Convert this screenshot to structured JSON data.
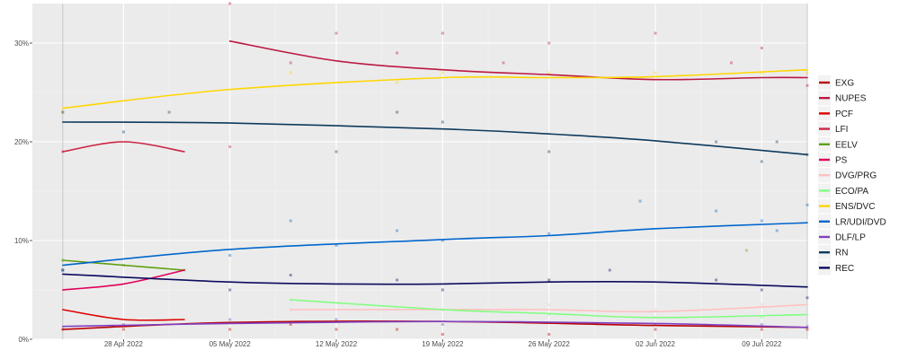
{
  "chart_data": {
    "type": "line",
    "title": "",
    "xlabel": "",
    "ylabel": "",
    "x_range": [
      "2022-04-22",
      "2022-06-12"
    ],
    "ylim": [
      0,
      34
    ],
    "x_ticks": [
      {
        "date": "2022-04-28",
        "label": "28 Apr 2022"
      },
      {
        "date": "2022-05-05",
        "label": "05 May 2022"
      },
      {
        "date": "2022-05-12",
        "label": "12 May 2022"
      },
      {
        "date": "2022-05-19",
        "label": "19 May 2022"
      },
      {
        "date": "2022-05-26",
        "label": "26 May 2022"
      },
      {
        "date": "2022-06-02",
        "label": "02 Jun 2022"
      },
      {
        "date": "2022-06-09",
        "label": "09 Jun 2022"
      }
    ],
    "y_ticks": [
      {
        "value": 0,
        "label": "0%"
      },
      {
        "value": 10,
        "label": "10%"
      },
      {
        "value": 20,
        "label": "20%"
      },
      {
        "value": 30,
        "label": "30%"
      }
    ],
    "reference_dates": [
      "2022-04-24",
      "2022-06-12"
    ],
    "grid": true,
    "legend_position": "right",
    "series": [
      {
        "name": "EXG",
        "color": "#bb0000",
        "points": [
          [
            "2022-04-24",
            1.0
          ],
          [
            "2022-05-05",
            1.7
          ],
          [
            "2022-05-19",
            1.8
          ],
          [
            "2022-06-02",
            1.4
          ],
          [
            "2022-06-12",
            1.2
          ]
        ]
      },
      {
        "name": "NUPES",
        "color": "#bb1840",
        "points": [
          [
            "2022-05-05",
            30.2
          ],
          [
            "2022-05-12",
            28.2
          ],
          [
            "2022-05-19",
            27.3
          ],
          [
            "2022-05-26",
            26.8
          ],
          [
            "2022-06-02",
            26.3
          ],
          [
            "2022-06-09",
            26.5
          ],
          [
            "2022-06-12",
            26.5
          ]
        ]
      },
      {
        "name": "PCF",
        "color": "#dd0000",
        "points": [
          [
            "2022-04-24",
            3.0
          ],
          [
            "2022-04-28",
            2.0
          ],
          [
            "2022-05-02",
            2.0
          ]
        ]
      },
      {
        "name": "LFI",
        "color": "#cc2443",
        "points": [
          [
            "2022-04-24",
            19.0
          ],
          [
            "2022-04-28",
            20.0
          ],
          [
            "2022-05-02",
            19.0
          ]
        ]
      },
      {
        "name": "EELV",
        "color": "#5da00e",
        "points": [
          [
            "2022-04-24",
            8.0
          ],
          [
            "2022-04-28",
            7.5
          ],
          [
            "2022-05-02",
            7.0
          ]
        ]
      },
      {
        "name": "PS",
        "color": "#e0005a",
        "points": [
          [
            "2022-04-24",
            5.0
          ],
          [
            "2022-04-28",
            5.6
          ],
          [
            "2022-05-02",
            7.0
          ]
        ]
      },
      {
        "name": "DVG/PRG",
        "color": "#ffc0c0",
        "points": [
          [
            "2022-05-09",
            3.0
          ],
          [
            "2022-05-19",
            3.0
          ],
          [
            "2022-05-26",
            3.0
          ],
          [
            "2022-06-02",
            2.8
          ],
          [
            "2022-06-12",
            3.5
          ]
        ]
      },
      {
        "name": "ECO/PA",
        "color": "#7fff7f",
        "points": [
          [
            "2022-05-09",
            4.0
          ],
          [
            "2022-05-19",
            3.0
          ],
          [
            "2022-05-26",
            2.6
          ],
          [
            "2022-06-02",
            2.2
          ],
          [
            "2022-06-12",
            2.5
          ]
        ]
      },
      {
        "name": "ENS/DVC",
        "color": "#ffd600",
        "points": [
          [
            "2022-04-24",
            23.4
          ],
          [
            "2022-05-05",
            25.3
          ],
          [
            "2022-05-19",
            26.5
          ],
          [
            "2022-05-26",
            26.5
          ],
          [
            "2022-06-02",
            26.6
          ],
          [
            "2022-06-12",
            27.3
          ]
        ]
      },
      {
        "name": "LR/UDI/DVD",
        "color": "#0066cc",
        "points": [
          [
            "2022-04-24",
            7.5
          ],
          [
            "2022-05-05",
            9.1
          ],
          [
            "2022-05-19",
            10.1
          ],
          [
            "2022-05-26",
            10.5
          ],
          [
            "2022-06-02",
            11.2
          ],
          [
            "2022-06-12",
            11.8
          ]
        ]
      },
      {
        "name": "DLF/LP",
        "color": "#8040c0",
        "points": [
          [
            "2022-04-24",
            1.3
          ],
          [
            "2022-05-05",
            1.6
          ],
          [
            "2022-05-19",
            1.8
          ],
          [
            "2022-06-02",
            1.6
          ],
          [
            "2022-06-12",
            1.2
          ]
        ]
      },
      {
        "name": "RN",
        "color": "#0d3a5c",
        "points": [
          [
            "2022-04-24",
            22.0
          ],
          [
            "2022-05-05",
            21.9
          ],
          [
            "2022-05-19",
            21.3
          ],
          [
            "2022-05-26",
            20.8
          ],
          [
            "2022-06-02",
            20.1
          ],
          [
            "2022-06-12",
            18.7
          ]
        ]
      },
      {
        "name": "REC",
        "color": "#0b0b5e",
        "points": [
          [
            "2022-04-24",
            6.6
          ],
          [
            "2022-05-05",
            5.8
          ],
          [
            "2022-05-12",
            5.6
          ],
          [
            "2022-05-19",
            5.6
          ],
          [
            "2022-05-26",
            5.8
          ],
          [
            "2022-06-02",
            5.8
          ],
          [
            "2022-06-12",
            5.3
          ]
        ]
      }
    ],
    "polls": [
      {
        "series": "NUPES",
        "points": [
          [
            "2022-05-05",
            34
          ],
          [
            "2022-05-09",
            28
          ],
          [
            "2022-05-12",
            31
          ],
          [
            "2022-05-16",
            29
          ],
          [
            "2022-05-19",
            31
          ],
          [
            "2022-05-23",
            28
          ],
          [
            "2022-05-26",
            30
          ],
          [
            "2022-06-02",
            31
          ],
          [
            "2022-06-07",
            28
          ],
          [
            "2022-06-09",
            29.5
          ],
          [
            "2022-06-12",
            25.7
          ]
        ]
      },
      {
        "series": "ENS/DVC",
        "points": [
          [
            "2022-04-24",
            23
          ],
          [
            "2022-05-09",
            27
          ],
          [
            "2022-05-16",
            26
          ],
          [
            "2022-05-19",
            27
          ],
          [
            "2022-05-26",
            27
          ],
          [
            "2022-06-02",
            27
          ],
          [
            "2022-06-09",
            27
          ],
          [
            "2022-06-12",
            27
          ]
        ]
      },
      {
        "series": "RN",
        "points": [
          [
            "2022-04-24",
            23
          ],
          [
            "2022-04-28",
            21
          ],
          [
            "2022-05-01",
            23
          ],
          [
            "2022-05-12",
            19
          ],
          [
            "2022-05-16",
            23
          ],
          [
            "2022-05-19",
            22
          ],
          [
            "2022-05-26",
            19
          ],
          [
            "2022-06-06",
            20
          ],
          [
            "2022-06-09",
            18
          ],
          [
            "2022-06-10",
            20
          ],
          [
            "2022-06-12",
            18.7
          ]
        ]
      },
      {
        "series": "LFI",
        "points": [
          [
            "2022-04-24",
            19
          ],
          [
            "2022-05-05",
            19.5
          ]
        ]
      },
      {
        "series": "LR/UDI/DVD",
        "points": [
          [
            "2022-04-24",
            7
          ],
          [
            "2022-05-05",
            8.5
          ],
          [
            "2022-05-09",
            12
          ],
          [
            "2022-05-12",
            9.5
          ],
          [
            "2022-05-16",
            11
          ],
          [
            "2022-05-19",
            10
          ],
          [
            "2022-05-26",
            10.7
          ],
          [
            "2022-06-01",
            14
          ],
          [
            "2022-06-06",
            13
          ],
          [
            "2022-06-09",
            12
          ],
          [
            "2022-06-10",
            11
          ],
          [
            "2022-06-12",
            13.6
          ]
        ]
      },
      {
        "series": "EELV",
        "points": [
          [
            "2022-04-24",
            8
          ],
          [
            "2022-04-28",
            7.5
          ],
          [
            "2022-05-02",
            7
          ],
          [
            "2022-06-08",
            9
          ]
        ]
      },
      {
        "series": "REC",
        "points": [
          [
            "2022-04-24",
            7
          ],
          [
            "2022-05-05",
            5
          ],
          [
            "2022-05-09",
            6.5
          ],
          [
            "2022-05-16",
            6
          ],
          [
            "2022-05-19",
            5
          ],
          [
            "2022-05-26",
            6
          ],
          [
            "2022-05-30",
            7
          ],
          [
            "2022-06-06",
            6
          ],
          [
            "2022-06-09",
            5
          ],
          [
            "2022-06-12",
            4.2
          ]
        ]
      },
      {
        "series": "DVG/PRG",
        "points": [
          [
            "2022-05-09",
            3
          ],
          [
            "2022-05-16",
            3
          ],
          [
            "2022-05-19",
            3
          ],
          [
            "2022-05-26",
            3.5
          ],
          [
            "2022-06-02",
            3
          ],
          [
            "2022-06-09",
            3.5
          ]
        ]
      },
      {
        "series": "ECO/PA",
        "points": [
          [
            "2022-05-09",
            4
          ],
          [
            "2022-05-19",
            3
          ],
          [
            "2022-05-26",
            2.5
          ],
          [
            "2022-06-02",
            2.2
          ],
          [
            "2022-06-09",
            2.2
          ]
        ]
      },
      {
        "series": "EXG",
        "points": [
          [
            "2022-04-24",
            1
          ],
          [
            "2022-04-28",
            1
          ],
          [
            "2022-05-05",
            1
          ],
          [
            "2022-05-09",
            1.5
          ],
          [
            "2022-05-12",
            1
          ],
          [
            "2022-05-16",
            1
          ],
          [
            "2022-05-19",
            0.5
          ],
          [
            "2022-05-26",
            0.5
          ],
          [
            "2022-06-02",
            1
          ],
          [
            "2022-06-09",
            1
          ],
          [
            "2022-06-12",
            1
          ]
        ]
      },
      {
        "series": "DLF/LP",
        "points": [
          [
            "2022-04-28",
            1.5
          ],
          [
            "2022-05-05",
            2
          ],
          [
            "2022-05-12",
            2
          ],
          [
            "2022-05-19",
            1.5
          ],
          [
            "2022-06-02",
            1.5
          ],
          [
            "2022-06-09",
            1.5
          ],
          [
            "2022-06-12",
            1.3
          ]
        ]
      }
    ]
  }
}
